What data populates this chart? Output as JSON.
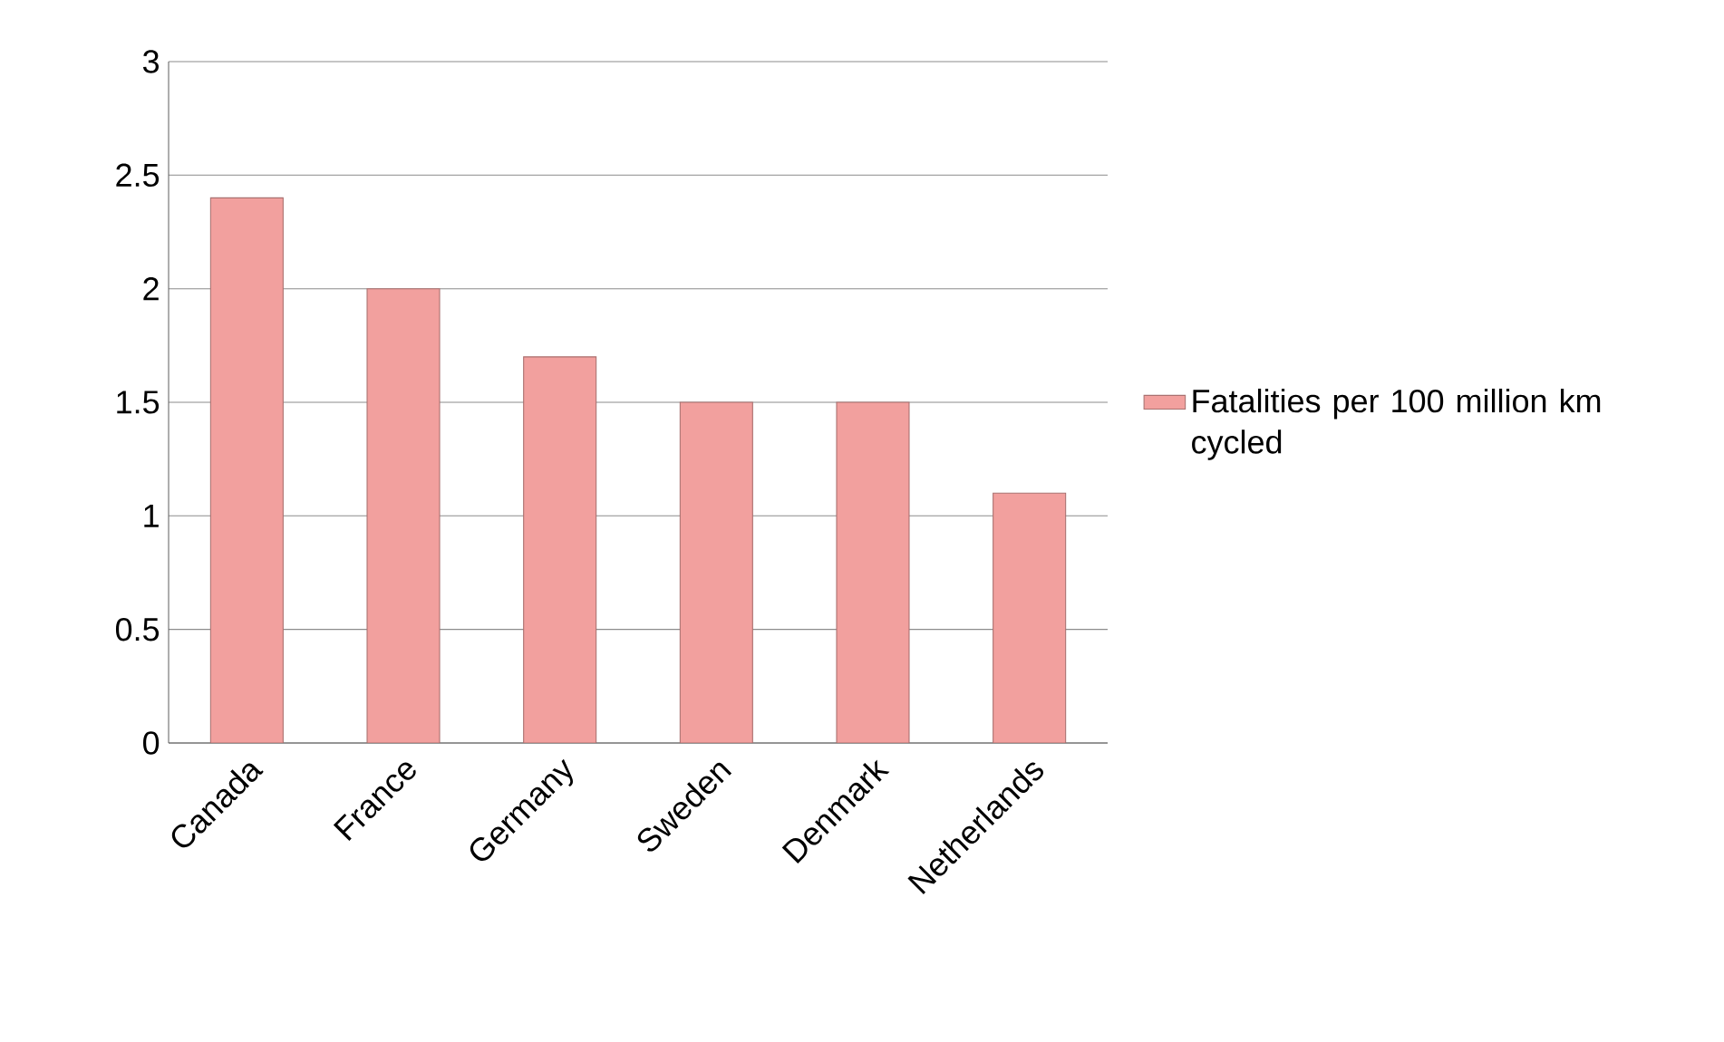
{
  "chart_data": {
    "type": "bar",
    "categories": [
      "Canada",
      "France",
      "Germany",
      "Sweden",
      "Denmark",
      "Netherlands"
    ],
    "series": [
      {
        "name": "Fatalities per 100 million km cycled",
        "color": "#f2a09e",
        "values": [
          2.4,
          2.0,
          1.7,
          1.5,
          1.5,
          1.1
        ]
      }
    ],
    "ylim": [
      0,
      3
    ],
    "yticks": [
      0,
      0.5,
      1,
      1.5,
      2,
      2.5,
      3
    ],
    "grid": "y",
    "legend": "right"
  }
}
